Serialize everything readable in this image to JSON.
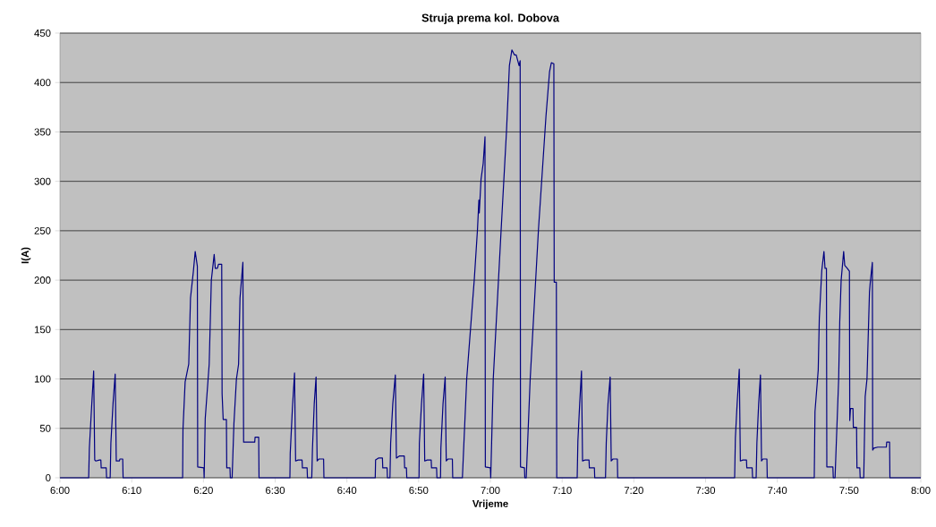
{
  "chart_data": {
    "type": "line",
    "title": "Struja prema kol. Dobova",
    "xlabel": "Vrijeme",
    "ylabel": "I(A)",
    "xlim": [
      6,
      8
    ],
    "ylim": [
      0,
      450
    ],
    "xticks": [
      {
        "value": 6,
        "label": "6:00"
      },
      {
        "value": 6.1667,
        "label": "6:10"
      },
      {
        "value": 6.3333,
        "label": "6:20"
      },
      {
        "value": 6.5,
        "label": "6:30"
      },
      {
        "value": 6.6667,
        "label": "6:40"
      },
      {
        "value": 6.8333,
        "label": "6:50"
      },
      {
        "value": 7,
        "label": "7:00"
      },
      {
        "value": 7.1667,
        "label": "7:10"
      },
      {
        "value": 7.3333,
        "label": "7:20"
      },
      {
        "value": 7.5,
        "label": "7:30"
      },
      {
        "value": 7.6667,
        "label": "7:40"
      },
      {
        "value": 7.8333,
        "label": "7:50"
      },
      {
        "value": 8,
        "label": "8:00"
      }
    ],
    "yticks": [
      0,
      50,
      100,
      150,
      200,
      250,
      300,
      350,
      400,
      450
    ],
    "grid": "y",
    "marker": "none",
    "line_style": "solid",
    "series": [
      {
        "color": "#000080",
        "x": [
          6.0,
          6.0667,
          6.0683,
          6.0733,
          6.0783,
          6.0808,
          6.0833,
          6.0917,
          6.095,
          6.0958,
          6.1075,
          6.1083,
          6.1167,
          6.1183,
          6.1233,
          6.1283,
          6.1308,
          6.1383,
          6.1392,
          6.1458,
          6.1467,
          6.285,
          6.2858,
          6.2908,
          6.2992,
          6.3033,
          6.31,
          6.3142,
          6.3192,
          6.32,
          6.3342,
          6.335,
          6.3375,
          6.3467,
          6.3517,
          6.3583,
          6.3608,
          6.3658,
          6.3683,
          6.3758,
          6.3767,
          6.3792,
          6.3867,
          6.3875,
          6.395,
          6.3958,
          6.4,
          6.4042,
          6.41,
          6.415,
          6.4183,
          6.425,
          6.4267,
          6.4525,
          6.4533,
          6.4617,
          6.4625,
          6.5342,
          6.535,
          6.54,
          6.545,
          6.5475,
          6.5533,
          6.5625,
          6.5633,
          6.5742,
          6.575,
          6.585,
          6.5867,
          6.5908,
          6.595,
          6.5975,
          6.6017,
          6.6125,
          6.6133,
          6.7325,
          6.7333,
          6.74,
          6.7492,
          6.75,
          6.76,
          6.7608,
          6.7667,
          6.7683,
          6.7733,
          6.7792,
          6.7817,
          6.7883,
          6.8,
          6.8008,
          6.805,
          6.8058,
          6.8342,
          6.835,
          6.84,
          6.845,
          6.8475,
          6.8533,
          6.8625,
          6.8633,
          6.875,
          6.8758,
          6.8842,
          6.885,
          6.89,
          6.895,
          6.8975,
          6.9017,
          6.9117,
          6.9125,
          6.935,
          6.945,
          6.9625,
          6.97,
          6.9733,
          6.9742,
          6.9783,
          6.9833,
          6.9875,
          6.9883,
          7.0,
          7.0008,
          7.0067,
          7.025,
          7.0375,
          7.0442,
          7.05,
          7.0558,
          7.06,
          7.0667,
          7.0692,
          7.07,
          7.0792,
          7.08,
          7.0833,
          7.0925,
          7.1117,
          7.1292,
          7.1375,
          7.1417,
          7.1475,
          7.1483,
          7.1533,
          7.1542,
          7.2017,
          7.2033,
          7.2075,
          7.2117,
          7.2142,
          7.22,
          7.2292,
          7.23,
          7.2417,
          7.2425,
          7.2675,
          7.2692,
          7.2733,
          7.2783,
          7.2808,
          7.285,
          7.295,
          7.2958,
          7.5675,
          7.5692,
          7.5733,
          7.5783,
          7.5808,
          7.5867,
          7.595,
          7.5958,
          7.6083,
          7.6092,
          7.6175,
          7.6192,
          7.6233,
          7.6275,
          7.63,
          7.6333,
          7.6425,
          7.6433,
          7.7525,
          7.7542,
          7.7617,
          7.7642,
          7.77,
          7.775,
          7.7775,
          7.7808,
          7.7817,
          7.7958,
          7.7967,
          7.8008,
          7.8092,
          7.8117,
          7.815,
          7.8208,
          7.8233,
          7.8292,
          7.8342,
          7.835,
          7.8367,
          7.8425,
          7.8433,
          7.8508,
          7.8517,
          7.8583,
          7.8592,
          7.8675,
          7.8708,
          7.875,
          7.8808,
          7.8825,
          7.8875,
          7.8883,
          7.8908,
          7.9,
          7.92,
          7.9208,
          7.9275,
          7.9283,
          8.0
        ],
        "values": [
          0,
          0,
          30,
          70,
          108,
          18,
          17,
          18,
          18,
          10,
          10,
          0,
          0,
          35,
          75,
          105,
          17,
          17,
          19,
          19,
          0,
          0,
          49,
          97,
          115,
          182,
          209,
          229,
          214,
          11,
          10,
          0,
          60,
          115,
          200,
          226,
          212,
          212,
          216,
          216,
          85,
          59,
          59,
          10,
          10,
          0,
          0,
          55,
          100,
          115,
          182,
          218,
          36,
          36,
          41,
          41,
          0,
          0,
          25,
          70,
          106,
          17,
          18,
          18,
          10,
          10,
          0,
          0,
          30,
          75,
          102,
          17,
          19,
          19,
          0,
          0,
          18,
          20,
          20,
          10,
          10,
          0,
          0,
          35,
          75,
          104,
          20,
          22,
          22,
          10,
          10,
          0,
          0,
          35,
          75,
          105,
          17,
          18,
          18,
          10,
          10,
          0,
          0,
          30,
          75,
          102,
          17,
          19,
          19,
          0,
          0,
          100,
          200,
          251,
          281,
          268,
          302,
          318,
          345,
          11,
          10,
          0,
          100,
          251,
          351,
          417,
          433,
          428,
          428,
          417,
          422,
          11,
          10,
          0,
          0,
          100,
          251,
          366,
          411,
          420,
          419,
          198,
          198,
          0,
          0,
          37,
          75,
          108,
          17,
          18,
          18,
          10,
          10,
          0,
          0,
          35,
          75,
          102,
          17,
          19,
          19,
          0,
          0,
          40,
          75,
          110,
          17,
          18,
          18,
          10,
          10,
          0,
          0,
          35,
          75,
          104,
          17,
          19,
          19,
          0,
          0,
          67,
          109,
          161,
          210,
          229,
          212,
          212,
          11,
          11,
          0,
          0,
          100,
          158,
          200,
          229,
          215,
          212,
          209,
          58,
          70,
          70,
          51,
          51,
          10,
          10,
          0,
          0,
          82,
          100,
          188,
          197,
          218,
          28,
          30,
          31,
          31,
          36,
          36,
          0,
          0
        ]
      }
    ]
  }
}
